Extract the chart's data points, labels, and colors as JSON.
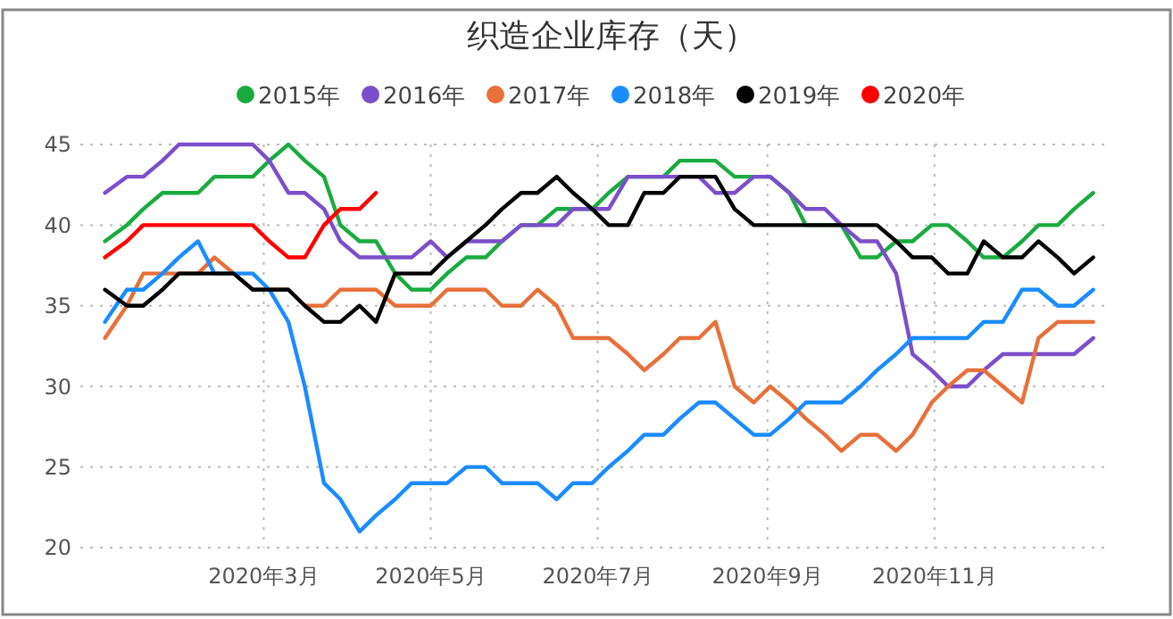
{
  "chart_data": {
    "type": "line",
    "title": "织造企业库存（天）",
    "x": [
      "2020-01-03",
      "2020-01-11",
      "2020-01-17",
      "2020-01-24",
      "2020-01-30",
      "2020-02-06",
      "2020-02-12",
      "2020-02-19",
      "2020-02-26",
      "2020-03-03",
      "2020-03-10",
      "2020-03-16",
      "2020-03-23",
      "2020-03-29",
      "2020-04-05",
      "2020-04-11",
      "2020-04-18",
      "2020-04-24",
      "2020-05-01",
      "2020-05-07",
      "2020-05-14",
      "2020-05-21",
      "2020-05-27",
      "2020-06-03",
      "2020-06-09",
      "2020-06-16",
      "2020-06-22",
      "2020-06-29",
      "2020-07-05",
      "2020-07-12",
      "2020-07-18",
      "2020-07-25",
      "2020-07-31",
      "2020-08-07",
      "2020-08-13",
      "2020-08-20",
      "2020-08-27",
      "2020-09-02",
      "2020-09-09",
      "2020-09-15",
      "2020-09-22",
      "2020-09-28",
      "2020-10-05",
      "2020-10-11",
      "2020-10-18",
      "2020-10-24",
      "2020-10-31",
      "2020-11-06",
      "2020-11-13",
      "2020-11-19",
      "2020-11-26",
      "2020-12-03",
      "2020-12-09",
      "2020-12-16",
      "2020-12-22",
      "2020-12-29"
    ],
    "series": [
      {
        "name": "2015年",
        "color": "#1aab40",
        "values": [
          39,
          40,
          41,
          42,
          42,
          42,
          43,
          43,
          43,
          44,
          45,
          44,
          43,
          40,
          39,
          39,
          37,
          36,
          36,
          37,
          38,
          38,
          39,
          40,
          40,
          41,
          41,
          41,
          42,
          43,
          43,
          43,
          44,
          44,
          44,
          43,
          43,
          43,
          42,
          40,
          40,
          40,
          38,
          38,
          39,
          39,
          40,
          40,
          39,
          38,
          38,
          39,
          40,
          40,
          41,
          42
        ]
      },
      {
        "name": "2016年",
        "color": "#7b4fc9",
        "values": [
          42,
          43,
          43,
          44,
          45,
          45,
          45,
          45,
          45,
          44,
          42,
          42,
          41,
          39,
          38,
          38,
          38,
          38,
          39,
          38,
          39,
          39,
          39,
          40,
          40,
          40,
          41,
          41,
          41,
          43,
          43,
          43,
          43,
          43,
          42,
          42,
          43,
          43,
          42,
          41,
          41,
          40,
          39,
          39,
          37,
          32,
          31,
          30,
          30,
          31,
          32,
          32,
          32,
          32,
          32,
          33
        ]
      },
      {
        "name": "2017年",
        "color": "#e8703a",
        "values": [
          33,
          35,
          37,
          37,
          37,
          37,
          38,
          37,
          36,
          36,
          36,
          35,
          35,
          36,
          36,
          36,
          35,
          35,
          35,
          36,
          36,
          36,
          35,
          35,
          36,
          35,
          33,
          33,
          33,
          32,
          31,
          32,
          33,
          33,
          34,
          30,
          29,
          30,
          29,
          28,
          27,
          26,
          27,
          27,
          26,
          27,
          29,
          30,
          31,
          31,
          30,
          29,
          33,
          34,
          34,
          34
        ]
      },
      {
        "name": "2018年",
        "color": "#1a8cff",
        "values": [
          34,
          36,
          36,
          37,
          38,
          39,
          37,
          37,
          37,
          36,
          34,
          30,
          24,
          23,
          21,
          22,
          23,
          24,
          24,
          24,
          25,
          25,
          24,
          24,
          24,
          23,
          24,
          24,
          25,
          26,
          27,
          27,
          28,
          29,
          29,
          28,
          27,
          27,
          28,
          29,
          29,
          29,
          30,
          31,
          32,
          33,
          33,
          33,
          33,
          34,
          34,
          36,
          36,
          35,
          35,
          36
        ]
      },
      {
        "name": "2019年",
        "color": "#000000",
        "values": [
          36,
          35,
          35,
          36,
          37,
          37,
          37,
          37,
          36,
          36,
          36,
          35,
          34,
          34,
          35,
          34,
          37,
          37,
          37,
          38,
          39,
          40,
          41,
          42,
          42,
          43,
          42,
          41,
          40,
          40,
          42,
          42,
          43,
          43,
          43,
          41,
          40,
          40,
          40,
          40,
          40,
          40,
          40,
          40,
          39,
          38,
          38,
          37,
          37,
          39,
          38,
          38,
          39,
          38,
          37,
          38
        ]
      },
      {
        "name": "2020年",
        "color": "#ff0000",
        "values": [
          38,
          39,
          40,
          40,
          40,
          40,
          40,
          40,
          40,
          39,
          38,
          38,
          40,
          41,
          41,
          42,
          null,
          null,
          null,
          null,
          null,
          null,
          null,
          null,
          null,
          null,
          null,
          null,
          null,
          null,
          null,
          null,
          null,
          null,
          null,
          null,
          null,
          null,
          null,
          null,
          null,
          null,
          null,
          null,
          null,
          null,
          null,
          null,
          null,
          null,
          null,
          null,
          null,
          null,
          null,
          null
        ]
      }
    ],
    "xlim": [
      "2019-12-25",
      "2021-01-03"
    ],
    "xticks": [
      {
        "value": "2020-03-01",
        "label": "2020年3月"
      },
      {
        "value": "2020-05-01",
        "label": "2020年5月"
      },
      {
        "value": "2020-07-01",
        "label": "2020年7月"
      },
      {
        "value": "2020-09-01",
        "label": "2020年9月"
      },
      {
        "value": "2020-11-01",
        "label": "2020年11月"
      }
    ],
    "ylim": [
      20,
      45
    ],
    "yticks": [
      20,
      25,
      30,
      35,
      40,
      45
    ],
    "grid": true,
    "legend": "top",
    "marker": "none",
    "line_style": "solid"
  }
}
